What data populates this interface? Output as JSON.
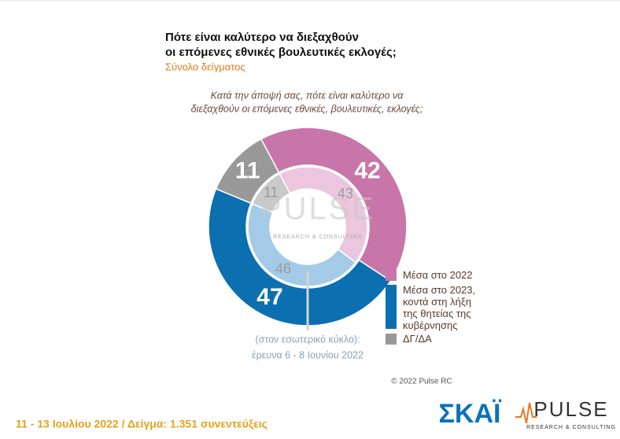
{
  "chart_data": {
    "type": "donut",
    "title_lines": [
      "Πότε είναι καλύτερο να διεξαχθούν",
      "οι επόμενες εθνικές βουλευτικές εκλογές;"
    ],
    "subtitle": "Σύνολο δείγματος",
    "question_lines": [
      "Κατά την άποψή σας, πότε είναι καλύτερο να",
      "διεξαχθούν οι επόμενες εθνικές, βουλευτικές, εκλογές;"
    ],
    "categories": [
      "Μέσα στο 2022",
      "Μέσα στο 2023, κοντά στη λήξη της θητείας της κυβέρνησης",
      "ΔΓ/ΔΑ"
    ],
    "series": [
      {
        "name": "Ιούλιος 2022",
        "colors": [
          "#c876a9",
          "#0b6fb0",
          "#999999"
        ],
        "values": [
          42,
          47,
          11
        ]
      },
      {
        "name": "(στον εσωτερικό κύκλο):",
        "colors": [
          "#ebc6de",
          "#a3cbe7",
          "#c9c9c9"
        ],
        "values": [
          43,
          46,
          11
        ]
      }
    ],
    "inner_note": "έρευνα 6 - 8 Ιουνίου 2022",
    "copyright": "© 2022 Pulse RC",
    "footer": "11 - 13 Ιουλίου 2022 / Δείγμα: 1.351 συνεντεύξεις",
    "logo_skai": "ΣΚΑΪ",
    "logo_pulse": "PULSE",
    "logo_pulse_sub": "RESEARCH & CONSULTING"
  }
}
